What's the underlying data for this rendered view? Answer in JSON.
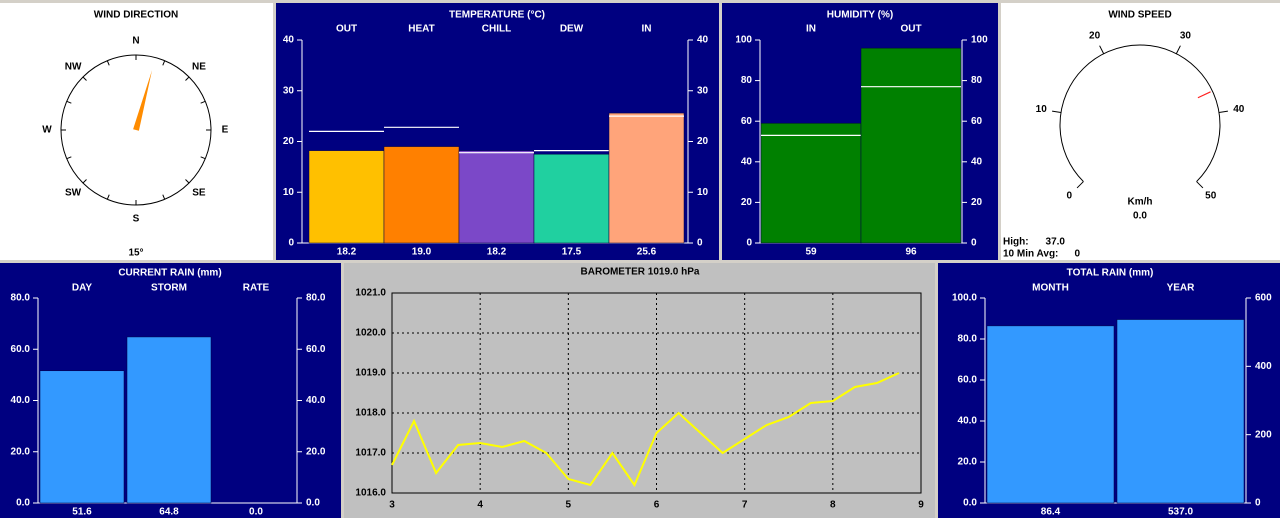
{
  "chart_data": [
    {
      "type": "compass",
      "title": "WIND DIRECTION",
      "points": [
        "N",
        "NE",
        "E",
        "SE",
        "S",
        "SW",
        "W",
        "NW"
      ],
      "value": 15,
      "value_label": "15°",
      "color": "#ff8c00"
    },
    {
      "type": "bar",
      "title": "TEMPERATURE (°C)",
      "categories": [
        "OUT",
        "HEAT",
        "CHILL",
        "DEW",
        "IN"
      ],
      "values": [
        18.2,
        19.0,
        18.2,
        17.5,
        25.6
      ],
      "value_labels": [
        "18.2",
        "19.0",
        "18.2",
        "17.5",
        "25.6"
      ],
      "colors": [
        "#ffc000",
        "#ff8000",
        "#7b48c8",
        "#20d0a0",
        "#ffa47a"
      ],
      "markers": [
        22,
        22.8,
        17.8,
        18.2,
        25
      ],
      "marker_color": "#ffffff",
      "ylim": [
        0,
        40
      ],
      "yticks": [
        0,
        10,
        20,
        30,
        40
      ]
    },
    {
      "type": "bar",
      "title": "HUMIDITY (%)",
      "categories": [
        "IN",
        "OUT"
      ],
      "values": [
        59,
        96
      ],
      "colors": [
        "#008000",
        "#008000"
      ],
      "markers": [
        53,
        77
      ],
      "marker_color": "#ffffff",
      "ylim": [
        0,
        100
      ],
      "yticks": [
        0,
        20,
        40,
        60,
        80,
        100
      ]
    },
    {
      "type": "gauge",
      "title": "WIND SPEED",
      "unit": "Km/h",
      "value": 0,
      "value_label": "0.0",
      "high_label": "High:",
      "high": 37,
      "high_value_label": "37.0",
      "avg_label": "10 Min Avg:",
      "avg": 0,
      "lim": [
        0,
        50
      ],
      "ticks": [
        0,
        10,
        20,
        30,
        40,
        50
      ],
      "high_color": "#ff2020"
    },
    {
      "type": "bar",
      "title": "CURRENT RAIN (mm)",
      "categories": [
        "DAY",
        "STORM",
        "RATE"
      ],
      "values": [
        51.6,
        64.8,
        0.0
      ],
      "value_labels": [
        "51.6",
        "64.8",
        "0.0"
      ],
      "colors": [
        "#3399ff",
        "#3399ff",
        "#3399ff"
      ],
      "ylim": [
        0,
        80
      ],
      "yticks": [
        {
          "value": 0,
          "label": "0.0"
        },
        {
          "value": 20,
          "label": "20.0"
        },
        {
          "value": 40,
          "label": "40.0"
        },
        {
          "value": 60,
          "label": "60.0"
        },
        {
          "value": 80,
          "label": "80.0"
        }
      ]
    },
    {
      "type": "line",
      "title": "BAROMETER 1019.0 hPa",
      "color": "#ffff00",
      "grid": true,
      "x": [
        3,
        3.25,
        3.5,
        3.75,
        4,
        4.25,
        4.5,
        4.75,
        5,
        5.25,
        5.5,
        5.75,
        6,
        6.25,
        6.5,
        6.75,
        7,
        7.25,
        7.5,
        7.75,
        8,
        8.25,
        8.5,
        8.75
      ],
      "values": [
        1016.7,
        1017.8,
        1016.5,
        1017.2,
        1017.25,
        1017.15,
        1017.3,
        1017.0,
        1016.35,
        1016.2,
        1017.0,
        1016.2,
        1017.5,
        1018.0,
        1017.5,
        1017.0,
        1017.35,
        1017.7,
        1017.9,
        1018.25,
        1018.3,
        1018.65,
        1018.75,
        1019.0
      ],
      "xlim": [
        3,
        9
      ],
      "xticks": [
        3,
        4,
        5,
        6,
        7,
        8,
        9
      ],
      "ylim": [
        1016,
        1021
      ],
      "yticks": [
        {
          "value": 1016,
          "label": "1016.0"
        },
        {
          "value": 1017,
          "label": "1017.0"
        },
        {
          "value": 1018,
          "label": "1018.0"
        },
        {
          "value": 1019,
          "label": "1019.0"
        },
        {
          "value": 1020,
          "label": "1020.0"
        },
        {
          "value": 1021,
          "label": "1021.0"
        }
      ]
    },
    {
      "type": "bar",
      "title": "TOTAL RAIN (mm)",
      "categories": [
        "MONTH",
        "YEAR"
      ],
      "values": [
        86.4,
        537.0
      ],
      "value_labels": [
        "86.4",
        "537.0"
      ],
      "value_axes": [
        "y",
        "y2"
      ],
      "colors": [
        "#3399ff",
        "#3399ff"
      ],
      "ylim": [
        0,
        100
      ],
      "yticks": [
        {
          "value": 0,
          "label": "0.0"
        },
        {
          "value": 20,
          "label": "20.0"
        },
        {
          "value": 40,
          "label": "40.0"
        },
        {
          "value": 60,
          "label": "60.0"
        },
        {
          "value": 80,
          "label": "80.0"
        },
        {
          "value": 100,
          "label": "100.0"
        }
      ],
      "y2lim": [
        0,
        600
      ],
      "y2ticks": [
        0,
        200,
        400,
        600
      ]
    }
  ]
}
